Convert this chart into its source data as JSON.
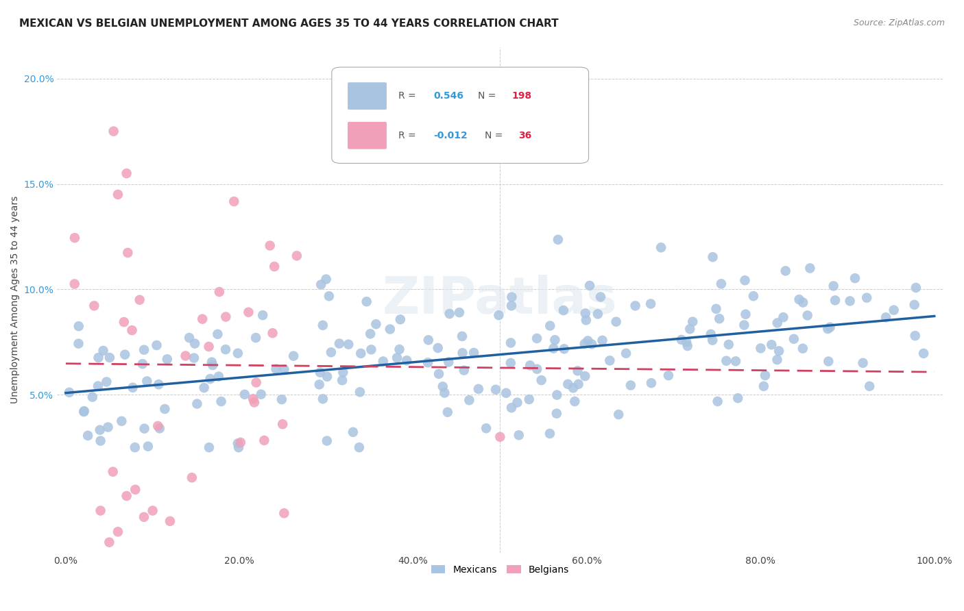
{
  "title": "MEXICAN VS BELGIAN UNEMPLOYMENT AMONG AGES 35 TO 44 YEARS CORRELATION CHART",
  "source": "Source: ZipAtlas.com",
  "ylabel": "Unemployment Among Ages 35 to 44 years",
  "watermark": "ZIPatlas",
  "mexican_color": "#a8c4e0",
  "belgian_color": "#f0a0b8",
  "mexican_line_color": "#2060a0",
  "belgian_line_color": "#d04060",
  "background_color": "#ffffff",
  "grid_color": "#cccccc",
  "R_mexican": 0.546,
  "N_mexican": 198,
  "R_belgian": -0.012,
  "N_belgian": 36,
  "xlim": [
    -0.01,
    1.01
  ],
  "ylim": [
    -0.025,
    0.215
  ],
  "xticks": [
    0.0,
    0.2,
    0.4,
    0.6,
    0.8,
    1.0
  ],
  "xtick_labels": [
    "0.0%",
    "20.0%",
    "40.0%",
    "60.0%",
    "80.0%",
    "100.0%"
  ],
  "yticks": [
    0.05,
    0.1,
    0.15,
    0.2
  ],
  "ytick_labels": [
    "5.0%",
    "10.0%",
    "15.0%",
    "20.0%"
  ],
  "title_fontsize": 11,
  "label_fontsize": 10,
  "tick_fontsize": 10,
  "source_fontsize": 9,
  "legend_R1": "0.546",
  "legend_N1": "198",
  "legend_R2": "-0.012",
  "legend_N2": "36"
}
